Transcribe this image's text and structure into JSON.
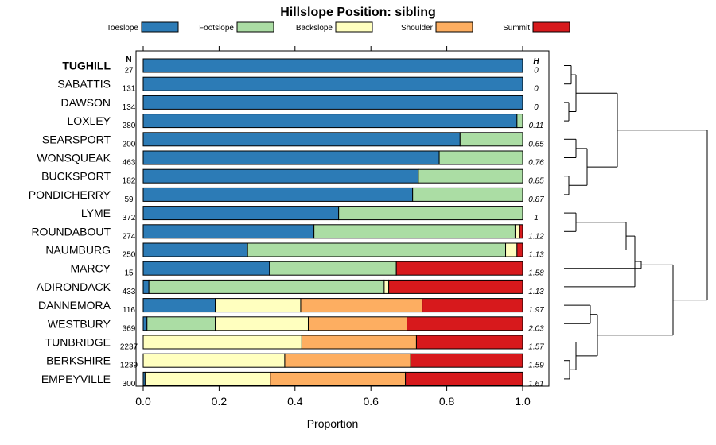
{
  "chart_data": {
    "type": "bar",
    "orientation": "horizontal",
    "stacked": true,
    "title": "Hillslope Position: sibling",
    "xlabel": "Proportion",
    "xlim": [
      0,
      1
    ],
    "x_ticks": [
      "0.0",
      "0.2",
      "0.4",
      "0.6",
      "0.8",
      "1.0"
    ],
    "n_header": "N",
    "h_header": "H",
    "legend_position": "top",
    "categories": [
      "TUGHILL",
      "SABATTIS",
      "DAWSON",
      "LOXLEY",
      "SEARSPORT",
      "WONSQUEAK",
      "BUCKSPORT",
      "PONDICHERRY",
      "LYME",
      "ROUNDABOUT",
      "NAUMBURG",
      "MARCY",
      "ADIRONDACK",
      "DANNEMORA",
      "WESTBURY",
      "TUNBRIDGE",
      "BERKSHIRE",
      "EMPEYVILLE"
    ],
    "highlighted_category": "TUGHILL",
    "n": [
      "27",
      "131",
      "134",
      "280",
      "200",
      "463",
      "182",
      "59",
      "372",
      "274",
      "250",
      "15",
      "433",
      "116",
      "369",
      "2237",
      "1239",
      "300"
    ],
    "h": [
      "0",
      "0",
      "0",
      "0.11",
      "0.65",
      "0.76",
      "0.85",
      "0.87",
      "1",
      "1.12",
      "1.13",
      "1.58",
      "1.13",
      "1.97",
      "2.03",
      "1.57",
      "1.59",
      "1.61"
    ],
    "series": [
      {
        "name": "Toeslope",
        "color": "#2C7BB6",
        "values": [
          1.0,
          1.0,
          1.0,
          0.985,
          0.835,
          0.78,
          0.725,
          0.71,
          0.515,
          0.45,
          0.275,
          0.333,
          0.015,
          0.19,
          0.01,
          0.0,
          0.0,
          0.005
        ]
      },
      {
        "name": "Footslope",
        "color": "#ABDDA4",
        "values": [
          0.0,
          0.0,
          0.0,
          0.015,
          0.165,
          0.22,
          0.275,
          0.29,
          0.485,
          0.53,
          0.68,
          0.334,
          0.62,
          0.0,
          0.18,
          0.0,
          0.0,
          0.0
        ]
      },
      {
        "name": "Backslope",
        "color": "#FFFFBF",
        "values": [
          0.0,
          0.0,
          0.0,
          0.0,
          0.0,
          0.0,
          0.0,
          0.0,
          0.0,
          0.012,
          0.03,
          0.0,
          0.012,
          0.225,
          0.245,
          0.418,
          0.373,
          0.33
        ]
      },
      {
        "name": "Shoulder",
        "color": "#FDAE61",
        "values": [
          0.0,
          0.0,
          0.0,
          0.0,
          0.0,
          0.0,
          0.0,
          0.0,
          0.0,
          0.0,
          0.0,
          0.0,
          0.0,
          0.32,
          0.26,
          0.302,
          0.332,
          0.356
        ]
      },
      {
        "name": "Summit",
        "color": "#D7191C",
        "values": [
          0.0,
          0.0,
          0.0,
          0.0,
          0.0,
          0.0,
          0.0,
          0.0,
          0.0,
          0.008,
          0.015,
          0.333,
          0.353,
          0.265,
          0.305,
          0.28,
          0.295,
          0.309
        ]
      }
    ]
  }
}
